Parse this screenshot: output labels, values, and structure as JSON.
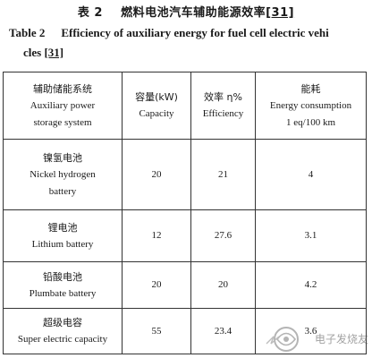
{
  "caption": {
    "cn_label": "表 2",
    "cn_title": "燃料电池汽车辅助能源效率",
    "cn_ref": "[31]",
    "en_label": "Table 2",
    "en_title_line1": "Efficiency of auxiliary energy for fuel cell electric vehi",
    "en_title_line2": "cles",
    "en_ref": "[31]"
  },
  "table": {
    "headers": [
      {
        "cn": "辅助储能系统",
        "en": [
          "Auxiliary power",
          "storage system"
        ]
      },
      {
        "cn": "容量(kW)",
        "en": [
          "Capacity"
        ]
      },
      {
        "cn": "效率 η%",
        "en": [
          "Efficiency"
        ]
      },
      {
        "cn": "能耗",
        "en": [
          "Energy consumption",
          "1 eq/100 km"
        ]
      }
    ],
    "rows": [
      {
        "system_cn": "镍氢电池",
        "system_en": [
          "Nickel hydrogen",
          "battery"
        ],
        "capacity": "20",
        "efficiency": "21",
        "energy": "4"
      },
      {
        "system_cn": "锂电池",
        "system_en": [
          "Lithium battery"
        ],
        "capacity": "12",
        "efficiency": "27.6",
        "energy": "3.1"
      },
      {
        "system_cn": "铅酸电池",
        "system_en": [
          "Plumbate battery"
        ],
        "capacity": "20",
        "efficiency": "20",
        "energy": "4.2"
      },
      {
        "system_cn": "超级电容",
        "system_en": [
          "Super electric capacity"
        ],
        "capacity": "55",
        "efficiency": "23.4",
        "energy": "3.6"
      }
    ]
  },
  "watermark": {
    "text": "电子发烧友",
    "icon": "elecfans-logo-icon"
  }
}
